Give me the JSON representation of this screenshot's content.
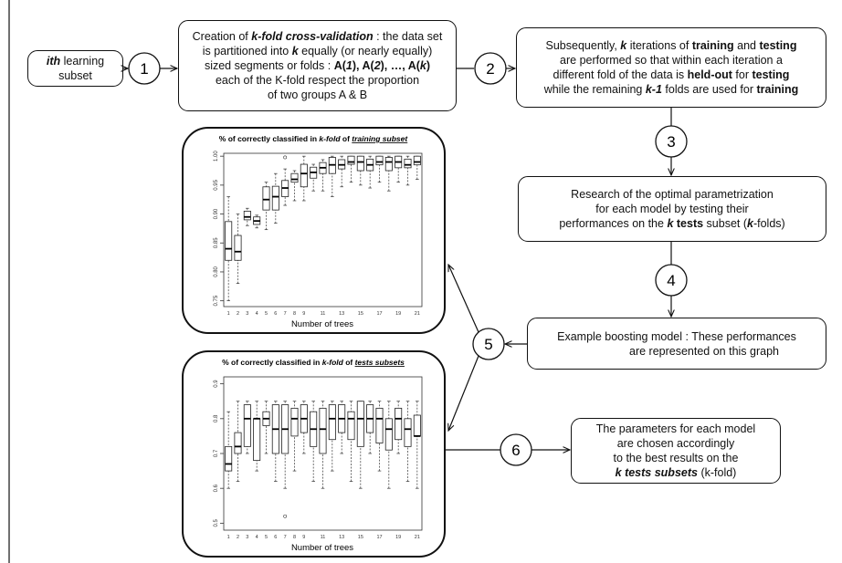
{
  "boxes": {
    "input": {
      "lines": [
        [
          "ith",
          " learning"
        ],
        [
          "subset"
        ]
      ]
    },
    "cv": {
      "lines": [
        [
          "Creation of ",
          "k-fold cross-validation",
          " : the data set"
        ],
        [
          "is partitioned into ",
          "k",
          " equally (or nearly equally)"
        ],
        [
          "sized segments or folds : ",
          "A(",
          "1",
          "), A(",
          "2",
          "), …, A(",
          "k",
          ")"
        ],
        [
          "each of the K-fold respect the proportion"
        ],
        [
          "of two groups A & B"
        ]
      ]
    },
    "iterations": {
      "lines": [
        [
          "Subsequently, ",
          "k",
          " iterations of ",
          "training",
          " and ",
          "testing"
        ],
        [
          "are performed so that within each iteration a"
        ],
        [
          "different fold of the data is ",
          "held-out",
          " for ",
          "testing"
        ],
        [
          "while the remaining ",
          "k-1",
          " folds are used for ",
          "training"
        ]
      ]
    },
    "research": {
      "lines": [
        [
          "Research of the optimal parametrization"
        ],
        [
          "for each model by testing their"
        ],
        [
          "performances on the ",
          "k",
          " ",
          "tests",
          " subset (",
          "k",
          "-folds)"
        ]
      ]
    },
    "example": {
      "lines": [
        [
          "Example boosting model : These performances"
        ],
        [
          "are represented on this graph"
        ]
      ]
    },
    "choice": {
      "lines": [
        [
          "The parameters for each model"
        ],
        [
          "are chosen accordingly"
        ],
        [
          "to the best results on the"
        ],
        [
          "k tests subsets",
          " (k-fold)"
        ]
      ]
    }
  },
  "steps": [
    "1",
    "2",
    "3",
    "4",
    "5",
    "6"
  ],
  "charts": [
    {
      "type": "boxplot",
      "title": [
        "% of correctly classified in ",
        "k-fold",
        " of ",
        "training subset"
      ],
      "x_label": "Number of trees",
      "categories": [
        "1",
        "2",
        "3",
        "4",
        "5",
        "6",
        "7",
        "8",
        "9",
        null,
        "11",
        null,
        "13",
        null,
        "15",
        null,
        "17",
        null,
        "19",
        null,
        "21"
      ],
      "ylim": [
        0.74,
        1.005
      ],
      "yticks": [
        0.75,
        {
          "value": 0.8,
          "label": "0.80"
        },
        0.85,
        {
          "value": 0.9,
          "label": "0.90"
        },
        0.95,
        {
          "value": 1,
          "label": "1.00"
        }
      ],
      "min": [
        0.75,
        0.78,
        0.88,
        0.876,
        0.873,
        0.884,
        0.915,
        0.923,
        0.923,
        0.94,
        0.94,
        0.93,
        0.947,
        0.955,
        0.95,
        0.945,
        0.955,
        0.94,
        0.955,
        0.95,
        0.96
      ],
      "q1": [
        0.82,
        0.82,
        0.89,
        0.882,
        0.907,
        0.907,
        0.93,
        0.955,
        0.947,
        0.962,
        0.97,
        0.97,
        0.978,
        0.986,
        0.975,
        0.975,
        0.985,
        0.975,
        0.98,
        0.98,
        0.985
      ],
      "median": [
        0.84,
        0.835,
        0.895,
        0.888,
        0.925,
        0.93,
        0.945,
        0.96,
        0.97,
        0.972,
        0.98,
        0.985,
        0.985,
        0.99,
        0.99,
        0.985,
        0.99,
        0.99,
        0.99,
        0.985,
        0.99
      ],
      "q3": [
        0.887,
        0.863,
        0.905,
        0.895,
        0.947,
        0.948,
        0.958,
        0.97,
        0.986,
        0.981,
        0.989,
        0.998,
        0.994,
        1,
        1,
        0.995,
        1,
        0.998,
        1,
        0.995,
        1
      ],
      "max": [
        0.93,
        0.9,
        0.91,
        0.898,
        0.955,
        0.97,
        0.978,
        0.975,
        1,
        0.986,
        0.994,
        1,
        1,
        1,
        1,
        1,
        1,
        1,
        1,
        1,
        1
      ],
      "outliers": [
        {
          "tree": 7,
          "value": 0.998
        }
      ]
    },
    {
      "type": "boxplot",
      "title": [
        "% of correctly classified in ",
        "k-fold",
        " of ",
        "tests subsets"
      ],
      "x_label": "Number of trees",
      "categories": [
        "1",
        "2",
        "3",
        "4",
        "5",
        "6",
        "7",
        "8",
        "9",
        null,
        "11",
        null,
        "13",
        null,
        "15",
        null,
        "17",
        null,
        "19",
        null,
        "21"
      ],
      "ylim": [
        0.48,
        0.92
      ],
      "yticks": [
        0.5,
        0.6,
        0.7,
        0.8,
        0.9
      ],
      "min": [
        0.6,
        0.62,
        0.7,
        0.65,
        0.7,
        0.62,
        0.6,
        0.65,
        0.7,
        0.62,
        0.6,
        0.65,
        0.7,
        0.62,
        0.6,
        0.7,
        0.65,
        0.6,
        0.7,
        0.62,
        0.6
      ],
      "q1": [
        0.65,
        0.7,
        0.72,
        0.68,
        0.78,
        0.7,
        0.7,
        0.75,
        0.76,
        0.72,
        0.7,
        0.74,
        0.76,
        0.74,
        0.72,
        0.76,
        0.73,
        0.71,
        0.74,
        0.72,
        0.75
      ],
      "median": [
        0.67,
        0.72,
        0.8,
        0.8,
        0.8,
        0.77,
        0.77,
        0.8,
        0.8,
        0.77,
        0.77,
        0.8,
        0.8,
        0.8,
        0.8,
        0.8,
        0.8,
        0.77,
        0.8,
        0.77,
        0.75
      ],
      "q3": [
        0.72,
        0.76,
        0.84,
        0.8,
        0.82,
        0.84,
        0.84,
        0.83,
        0.84,
        0.82,
        0.83,
        0.84,
        0.84,
        0.82,
        0.85,
        0.84,
        0.83,
        0.8,
        0.83,
        0.8,
        0.81
      ],
      "max": [
        0.82,
        0.85,
        0.85,
        0.85,
        0.85,
        0.85,
        0.85,
        0.85,
        0.85,
        0.85,
        0.85,
        0.85,
        0.85,
        0.85,
        0.85,
        0.85,
        0.85,
        0.85,
        0.85,
        0.85,
        0.85
      ],
      "outliers": [
        {
          "tree": 7,
          "value": 0.52
        }
      ]
    }
  ]
}
